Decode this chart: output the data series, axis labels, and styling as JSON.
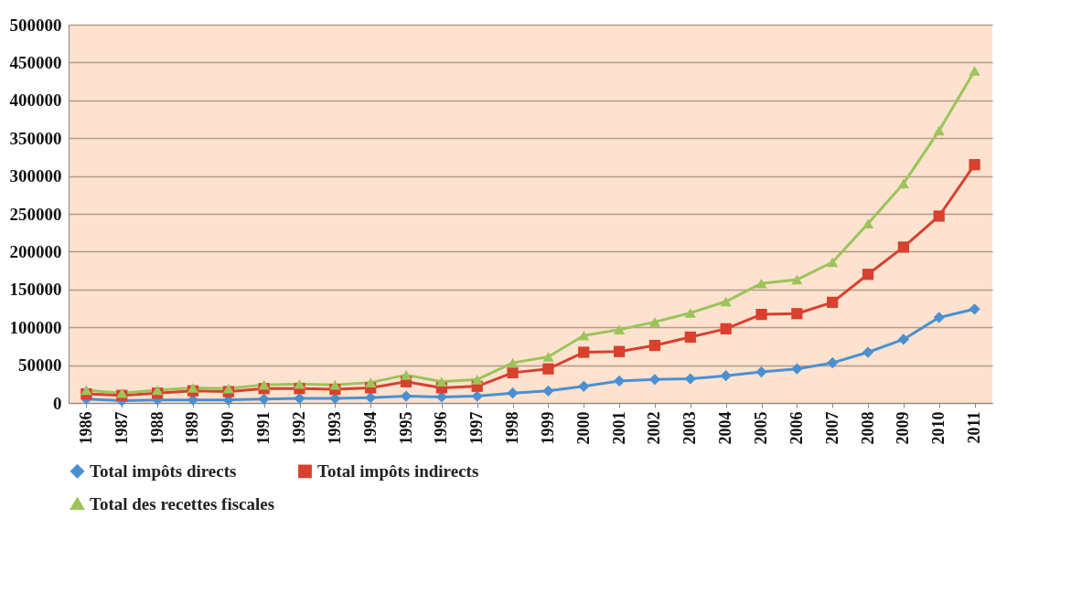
{
  "chart_data": {
    "type": "line",
    "categories": [
      "1986",
      "1987",
      "1988",
      "1989",
      "1990",
      "1991",
      "1992",
      "1993",
      "1994",
      "1995",
      "1996",
      "1997",
      "1998",
      "1999",
      "2000",
      "2001",
      "2002",
      "2003",
      "2004",
      "2005",
      "2006",
      "2007",
      "2008",
      "2009",
      "2010",
      "2011"
    ],
    "series": [
      {
        "name": "Total impôts directs",
        "color": "#4a90d0",
        "marker": "diamond",
        "values": [
          5000,
          3000,
          4000,
          4000,
          4000,
          5000,
          6000,
          6000,
          7000,
          9000,
          8000,
          9000,
          13000,
          16000,
          22000,
          29000,
          31000,
          32000,
          36000,
          41000,
          45000,
          53000,
          67000,
          84000,
          113000,
          124000
        ]
      },
      {
        "name": "Total impôts indirects",
        "color": "#d9402e",
        "marker": "square",
        "values": [
          12000,
          10000,
          13000,
          16000,
          15000,
          19000,
          19000,
          18000,
          20000,
          28000,
          20000,
          22000,
          40000,
          45000,
          67000,
          68000,
          76000,
          87000,
          98000,
          117000,
          118000,
          133000,
          170000,
          206000,
          247000,
          315000
        ]
      },
      {
        "name": "Total des recettes fiscales",
        "color": "#9cc45a",
        "marker": "triangle",
        "values": [
          17000,
          13000,
          17000,
          20000,
          19000,
          24000,
          25000,
          24000,
          27000,
          37000,
          28000,
          31000,
          53000,
          61000,
          89000,
          97000,
          107000,
          119000,
          134000,
          158000,
          163000,
          186000,
          237000,
          290000,
          360000,
          439000
        ]
      }
    ],
    "ylim": [
      0,
      500000
    ],
    "yticks": [
      0,
      50000,
      100000,
      150000,
      200000,
      250000,
      300000,
      350000,
      400000,
      450000,
      500000
    ],
    "grid": "y",
    "legend": "bottom",
    "line_style": "solid"
  }
}
